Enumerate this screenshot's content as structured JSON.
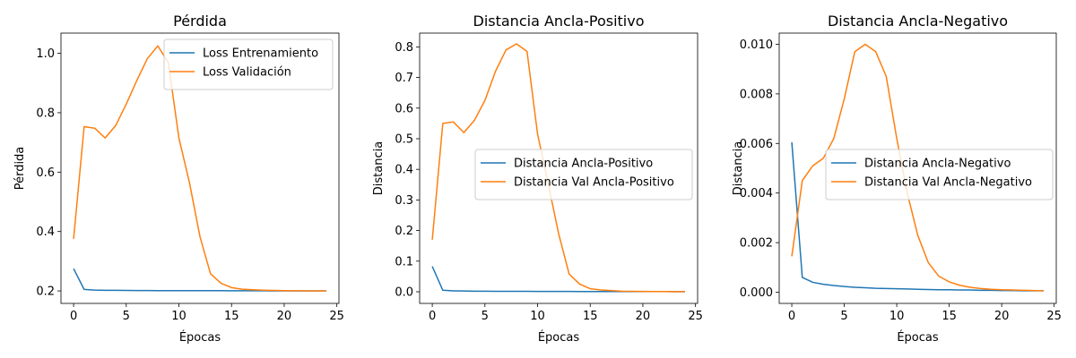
{
  "chart_data": [
    {
      "type": "line",
      "title": "Pérdida",
      "xlabel": "Épocas",
      "ylabel": "Pérdida",
      "xlim": [
        -1.2,
        25.2
      ],
      "ylim": [
        0.158,
        1.068
      ],
      "xticks": [
        0,
        5,
        10,
        15,
        20,
        25
      ],
      "xtick_labels": [
        "0",
        "5",
        "10",
        "15",
        "20",
        "25"
      ],
      "yticks": [
        0.2,
        0.4,
        0.6,
        0.8,
        1.0
      ],
      "ytick_labels": [
        "0.2",
        "0.4",
        "0.6",
        "0.8",
        "1.0"
      ],
      "grid": false,
      "legend_position": "top-right",
      "x": [
        0,
        1,
        2,
        3,
        4,
        5,
        6,
        7,
        8,
        9,
        10,
        11,
        12,
        13,
        14,
        15,
        16,
        17,
        18,
        19,
        20,
        21,
        22,
        23,
        24
      ],
      "series": [
        {
          "name": "Loss Entrenamiento",
          "color": "#1f77b4",
          "values": [
            0.275,
            0.205,
            0.203,
            0.202,
            0.202,
            0.2015,
            0.2013,
            0.2012,
            0.2011,
            0.201,
            0.201,
            0.201,
            0.201,
            0.201,
            0.2008,
            0.2007,
            0.2006,
            0.2005,
            0.2004,
            0.2003,
            0.2002,
            0.2002,
            0.2001,
            0.2001,
            0.2001
          ]
        },
        {
          "name": "Loss Validación",
          "color": "#ff7f0e",
          "values": [
            0.375,
            0.753,
            0.748,
            0.715,
            0.757,
            0.829,
            0.908,
            0.982,
            1.025,
            0.968,
            0.715,
            0.565,
            0.383,
            0.258,
            0.226,
            0.211,
            0.206,
            0.204,
            0.2025,
            0.2015,
            0.201,
            0.2005,
            0.2003,
            0.2002,
            0.2002
          ]
        }
      ]
    },
    {
      "type": "line",
      "title": "Distancia Ancla-Positivo",
      "xlabel": "Épocas",
      "ylabel": "Distancia",
      "xlim": [
        -1.2,
        25.2
      ],
      "ylim": [
        -0.038,
        0.845
      ],
      "xticks": [
        0,
        5,
        10,
        15,
        20,
        25
      ],
      "xtick_labels": [
        "0",
        "5",
        "10",
        "15",
        "20",
        "25"
      ],
      "yticks": [
        0.0,
        0.1,
        0.2,
        0.3,
        0.4,
        0.5,
        0.6,
        0.7,
        0.8
      ],
      "ytick_labels": [
        "0.0",
        "0.1",
        "0.2",
        "0.3",
        "0.4",
        "0.5",
        "0.6",
        "0.7",
        "0.8"
      ],
      "grid": false,
      "legend_position": "center-right",
      "x": [
        0,
        1,
        2,
        3,
        4,
        5,
        6,
        7,
        8,
        9,
        10,
        11,
        12,
        13,
        14,
        15,
        16,
        17,
        18,
        19,
        20,
        21,
        22,
        23,
        24
      ],
      "series": [
        {
          "name": "Distancia Ancla-Positivo",
          "color": "#1f77b4",
          "values": [
            0.083,
            0.005,
            0.003,
            0.0025,
            0.002,
            0.0018,
            0.0016,
            0.0015,
            0.0014,
            0.0013,
            0.0012,
            0.0011,
            0.001,
            0.001,
            0.0009,
            0.0009,
            0.0008,
            0.0008,
            0.0007,
            0.0007,
            0.0006,
            0.0006,
            0.0006,
            0.0005,
            0.0005
          ]
        },
        {
          "name": "Distancia Val Ancla-Positivo",
          "color": "#ff7f0e",
          "values": [
            0.17,
            0.55,
            0.555,
            0.52,
            0.56,
            0.625,
            0.72,
            0.79,
            0.81,
            0.785,
            0.515,
            0.355,
            0.19,
            0.058,
            0.025,
            0.01,
            0.006,
            0.004,
            0.002,
            0.0015,
            0.001,
            0.0008,
            0.0006,
            0.0005,
            0.0005
          ]
        }
      ]
    },
    {
      "type": "line",
      "title": "Distancia Ancla-Negativo",
      "xlabel": "Épocas",
      "ylabel": "Distancia",
      "xlim": [
        -1.2,
        25.2
      ],
      "ylim": [
        -0.00045,
        0.01045
      ],
      "xticks": [
        0,
        5,
        10,
        15,
        20,
        25
      ],
      "xtick_labels": [
        "0",
        "5",
        "10",
        "15",
        "20",
        "25"
      ],
      "yticks": [
        0.0,
        0.002,
        0.004,
        0.006,
        0.008,
        0.01
      ],
      "ytick_labels": [
        "0.000",
        "0.002",
        "0.004",
        "0.006",
        "0.008",
        "0.010"
      ],
      "grid": false,
      "legend_position": "center-right",
      "x": [
        0,
        1,
        2,
        3,
        4,
        5,
        6,
        7,
        8,
        9,
        10,
        11,
        12,
        13,
        14,
        15,
        16,
        17,
        18,
        19,
        20,
        21,
        22,
        23,
        24
      ],
      "series": [
        {
          "name": "Distancia Ancla-Negativo",
          "color": "#1f77b4",
          "values": [
            0.00605,
            0.0006,
            0.0004,
            0.00032,
            0.00027,
            0.00023,
            0.0002,
            0.00018,
            0.00016,
            0.00015,
            0.00014,
            0.00013,
            0.00012,
            0.00011,
            0.0001,
            0.0001,
            9e-05,
            9e-05,
            8e-05,
            8e-05,
            7e-05,
            7e-05,
            6e-05,
            6e-05,
            6e-05
          ]
        },
        {
          "name": "Distancia Val Ancla-Negativo",
          "color": "#ff7f0e",
          "values": [
            0.00145,
            0.0045,
            0.0051,
            0.0054,
            0.0062,
            0.0078,
            0.0097,
            0.01,
            0.0097,
            0.0087,
            0.0062,
            0.004,
            0.0023,
            0.0012,
            0.00065,
            0.00042,
            0.00028,
            0.0002,
            0.00015,
            0.00012,
            0.0001,
            9e-05,
            8e-05,
            7e-05,
            6e-05
          ]
        }
      ]
    }
  ]
}
